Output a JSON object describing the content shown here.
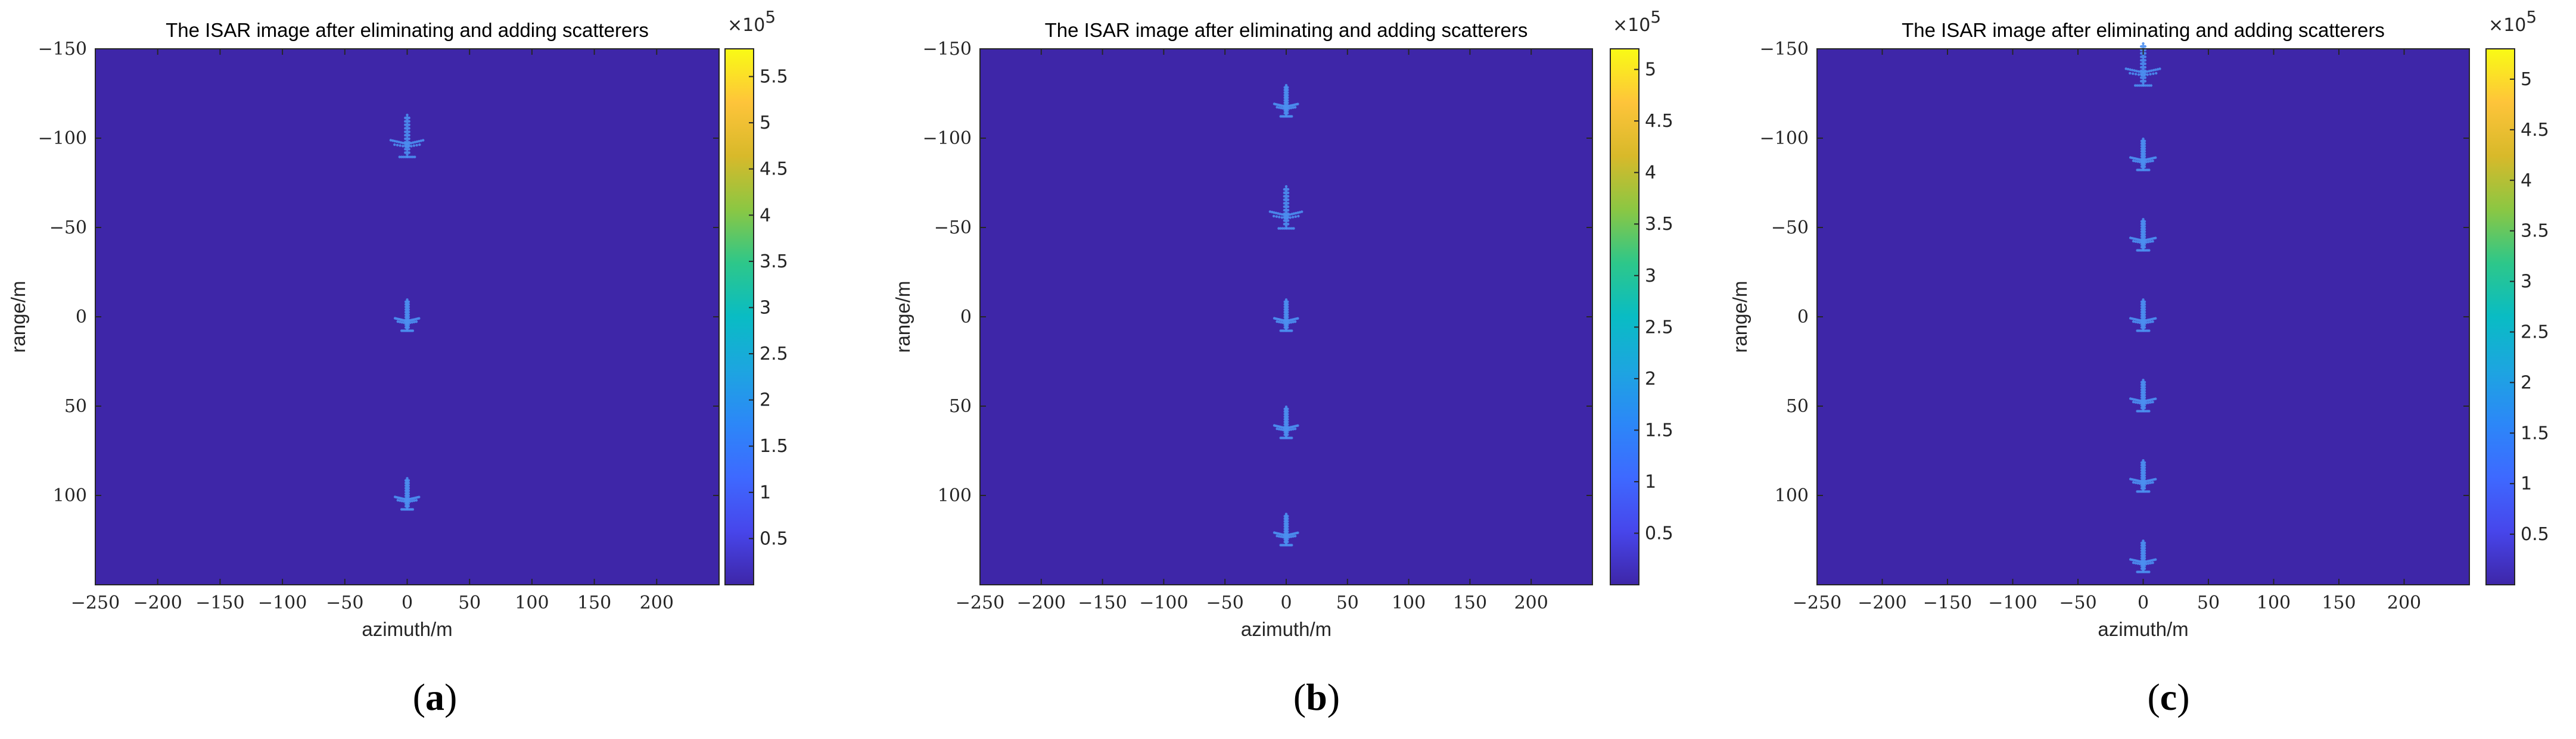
{
  "chart_data": [
    {
      "type": "heatmap",
      "panel_label": "a",
      "title": "The ISAR image after eliminating and adding scatterers",
      "xlabel": "azimuth/m",
      "ylabel": "range/m",
      "xlim": [
        -250,
        250
      ],
      "ylim": [
        -150,
        150
      ],
      "y_reversed": true,
      "xticks": [
        -250,
        -200,
        -150,
        -100,
        -50,
        0,
        50,
        100,
        150,
        200
      ],
      "yticks": [
        -150,
        -100,
        -50,
        0,
        50,
        100
      ],
      "background_color": "#3e26a8",
      "colorbar": {
        "multiplier": "×10",
        "exponent": "5",
        "max": 5.8,
        "ticks": [
          0.5,
          1,
          1.5,
          2,
          2.5,
          3,
          3.5,
          4,
          4.5,
          5,
          5.5
        ],
        "tick_labels": [
          "0.5",
          "1",
          "1.5",
          "2",
          "2.5",
          "3",
          "3.5",
          "4",
          "4.5",
          "5",
          "5.5"
        ]
      },
      "targets": [
        {
          "x": 0,
          "y": -100,
          "scale": 1.35
        },
        {
          "x": 0,
          "y": 0,
          "scale": 1.0
        },
        {
          "x": 0,
          "y": 100,
          "scale": 1.0
        }
      ]
    },
    {
      "type": "heatmap",
      "panel_label": "b",
      "title": "The ISAR image after eliminating and adding scatterers",
      "xlabel": "azimuth/m",
      "ylabel": "range/m",
      "xlim": [
        -250,
        250
      ],
      "ylim": [
        -150,
        150
      ],
      "y_reversed": true,
      "xticks": [
        -250,
        -200,
        -150,
        -100,
        -50,
        0,
        50,
        100,
        150,
        200
      ],
      "yticks": [
        -150,
        -100,
        -50,
        0,
        50,
        100
      ],
      "background_color": "#3e26a8",
      "colorbar": {
        "multiplier": "×10",
        "exponent": "5",
        "max": 5.2,
        "ticks": [
          0.5,
          1,
          1.5,
          2,
          2.5,
          3,
          3.5,
          4,
          4.5,
          5
        ],
        "tick_labels": [
          "0.5",
          "1",
          "1.5",
          "2",
          "2.5",
          "3",
          "3.5",
          "4",
          "4.5",
          "5"
        ]
      },
      "targets": [
        {
          "x": 0,
          "y": -120,
          "scale": 1.0
        },
        {
          "x": 0,
          "y": -60,
          "scale": 1.35
        },
        {
          "x": 0,
          "y": 0,
          "scale": 1.0
        },
        {
          "x": 0,
          "y": 60,
          "scale": 1.0
        },
        {
          "x": 0,
          "y": 120,
          "scale": 1.0
        }
      ]
    },
    {
      "type": "heatmap",
      "panel_label": "c",
      "title": "The ISAR image after eliminating and adding scatterers",
      "xlabel": "azimuth/m",
      "ylabel": "range/m",
      "xlim": [
        -250,
        250
      ],
      "ylim": [
        -150,
        150
      ],
      "y_reversed": true,
      "xticks": [
        -250,
        -200,
        -150,
        -100,
        -50,
        0,
        50,
        100,
        150,
        200
      ],
      "yticks": [
        -150,
        -100,
        -50,
        0,
        50,
        100
      ],
      "background_color": "#3e26a8",
      "colorbar": {
        "multiplier": "×10",
        "exponent": "5",
        "max": 5.3,
        "ticks": [
          0.5,
          1,
          1.5,
          2,
          2.5,
          3,
          3.5,
          4,
          4.5,
          5
        ],
        "tick_labels": [
          "0.5",
          "1",
          "1.5",
          "2",
          "2.5",
          "3",
          "3.5",
          "4",
          "4.5",
          "5"
        ]
      },
      "targets": [
        {
          "x": 0,
          "y": -140,
          "scale": 1.35
        },
        {
          "x": 0,
          "y": -90,
          "scale": 1.0
        },
        {
          "x": 0,
          "y": -45,
          "scale": 1.0
        },
        {
          "x": 0,
          "y": 0,
          "scale": 1.0
        },
        {
          "x": 0,
          "y": 45,
          "scale": 1.0
        },
        {
          "x": 0,
          "y": 90,
          "scale": 1.0
        },
        {
          "x": 0,
          "y": 135,
          "scale": 1.0
        }
      ]
    }
  ]
}
